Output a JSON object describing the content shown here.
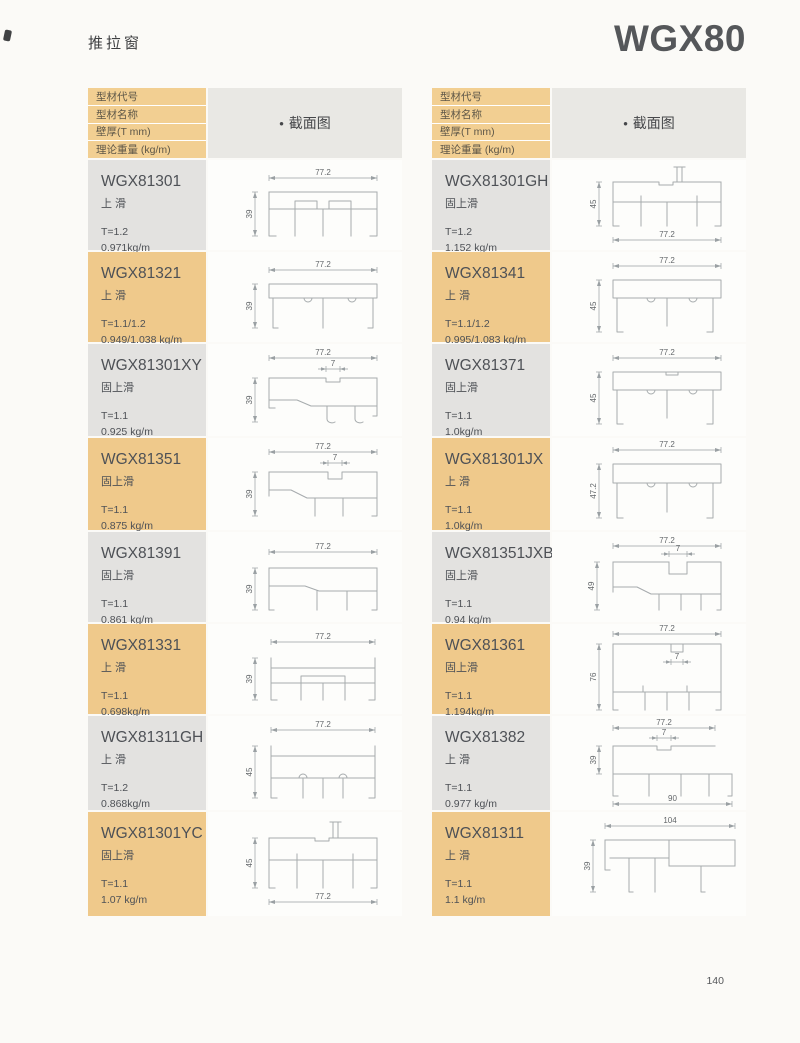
{
  "page": {
    "title_left": "推拉窗",
    "title_right": "WGX80",
    "page_number": "140"
  },
  "colors": {
    "header_tan": "#f2cf92",
    "row_tan": "#efc98b",
    "row_gray": "#e3e2e0",
    "section_gray": "#e9e8e4"
  },
  "table_header": {
    "labels": [
      "型材代号",
      "型材名称",
      "壁厚(T mm)",
      "理论重量 (kg/m)"
    ],
    "bullet": "•",
    "section_label": "截面图"
  },
  "tables": [
    {
      "rows": [
        {
          "code": "WGX81301",
          "name": "上 滑",
          "thickness": "T=1.2",
          "weight": "0.971kg/m",
          "profile": "slide2ch",
          "dims": {
            "top": "77.2",
            "left": "39"
          }
        },
        {
          "code": "WGX81321",
          "name": "上 滑",
          "thickness": "T=1.1/1.2",
          "weight": "0.949/1.038 kg/m",
          "profile": "rectTop39",
          "dims": {
            "top": "77.2",
            "left": "39"
          }
        },
        {
          "code": "WGX81301XY",
          "name": "固上滑",
          "thickness": "T=1.1",
          "weight": "0.925 kg/m",
          "profile": "notchJ",
          "dims": {
            "top": "77.2",
            "notch": "7",
            "left": "39"
          }
        },
        {
          "code": "WGX81351",
          "name": "固上滑",
          "thickness": "T=1.1",
          "weight": "0.875 kg/m",
          "profile": "notchSlant",
          "dims": {
            "top": "77.2",
            "notch": "7",
            "left": "39"
          }
        },
        {
          "code": "WGX81391",
          "name": "固上滑",
          "thickness": "T=1.1",
          "weight": "0.861 kg/m",
          "profile": "boxLegs",
          "dims": {
            "top": "77.2",
            "left": "39"
          }
        },
        {
          "code": "WGX81331",
          "name": "上 滑",
          "thickness": "T=1.1",
          "weight": "0.698kg/m",
          "profile": "flange39",
          "dims": {
            "top": "77.2",
            "left": "39"
          }
        },
        {
          "code": "WGX81311GH",
          "name": "上 滑",
          "thickness": "T=1.2",
          "weight": "0.868kg/m",
          "profile": "flange45",
          "dims": {
            "top": "77.2",
            "left": "45"
          }
        },
        {
          "code": "WGX81301YC",
          "name": "固上滑",
          "thickness": "T=1.1",
          "weight": "1.07 kg/m",
          "profile": "finUp104",
          "dims": {
            "left": "45",
            "bottom": "77.2"
          }
        }
      ]
    },
    {
      "rows": [
        {
          "code": "WGX81301GH",
          "name": "固上滑",
          "thickness": "T=1.2",
          "weight": "1.152 kg/m",
          "profile": "finUp90",
          "dims": {
            "left": "45",
            "bottom": "77.2"
          }
        },
        {
          "code": "WGX81341",
          "name": "上 滑",
          "thickness": "T=1.1/1.2",
          "weight": "0.995/1.083 kg/m",
          "profile": "rectTop45",
          "dims": {
            "top": "77.2",
            "left": "45"
          }
        },
        {
          "code": "WGX81371",
          "name": "固上滑",
          "thickness": "T=1.1",
          "weight": "1.0kg/m",
          "profile": "rectTopNotch45",
          "dims": {
            "top": "77.2",
            "left": "45"
          }
        },
        {
          "code": "WGX81301JX",
          "name": "上 滑",
          "thickness": "T=1.1",
          "weight": "1.0kg/m",
          "profile": "rectTop47",
          "dims": {
            "top": "77.2",
            "left": "47.2"
          }
        },
        {
          "code": "WGX81351JXB",
          "name": "固上滑",
          "thickness": "T=1.1",
          "weight": "0.94 kg/m",
          "profile": "tslot49",
          "dims": {
            "top": "77.2",
            "notch": "7",
            "left": "49"
          }
        },
        {
          "code": "WGX81361",
          "name": "固上滑",
          "thickness": "T=1.1",
          "weight": "1.194kg/m",
          "profile": "tall76",
          "dims": {
            "top": "77.2",
            "notch": "7",
            "left": "76"
          }
        },
        {
          "code": "WGX81382",
          "name": "上 滑",
          "thickness": "T=1.1",
          "weight": "0.977 kg/m",
          "profile": "wideBottom",
          "dims": {
            "top": "77.2",
            "notch": "7",
            "left": "39",
            "bottom": "90"
          }
        },
        {
          "code": "WGX81311",
          "name": "上 滑",
          "thickness": "T=1.1",
          "weight": "1.1 kg/m",
          "profile": "wide104",
          "dims": {
            "top": "104",
            "left": "39"
          }
        }
      ]
    }
  ]
}
